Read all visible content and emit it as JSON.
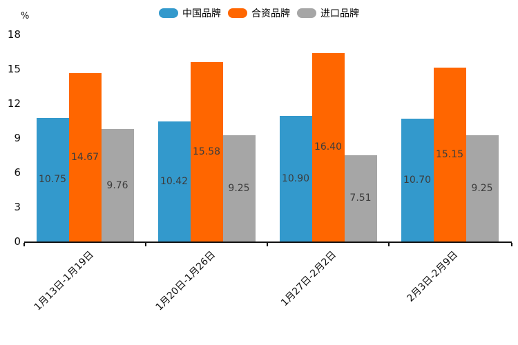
{
  "chart_data": {
    "type": "bar",
    "title": "",
    "unit": "%",
    "categories": [
      "1月13日-1月19日",
      "1月20日-1月26日",
      "1月27日-2月2日",
      "2月3日-2月9日"
    ],
    "series": [
      {
        "name": "中国品牌",
        "color": "#3399CC",
        "values": [
          10.75,
          10.42,
          10.9,
          10.7
        ]
      },
      {
        "name": "合资品牌",
        "color": "#FF6600",
        "values": [
          14.67,
          15.58,
          16.4,
          15.15
        ]
      },
      {
        "name": "进口品牌",
        "color": "#A6A6A6",
        "values": [
          9.76,
          9.25,
          7.51,
          9.25
        ]
      }
    ],
    "ylim": [
      0,
      18
    ],
    "yticks": [
      0,
      3,
      6,
      9,
      12,
      15,
      18
    ],
    "grid": false,
    "legend_position": "top-center",
    "value_labels": "inside-center",
    "value_label_decimals": 2
  },
  "colors": {
    "axis": "#111111",
    "value_label": "#3c3c3c",
    "tick_label": "#111111"
  }
}
